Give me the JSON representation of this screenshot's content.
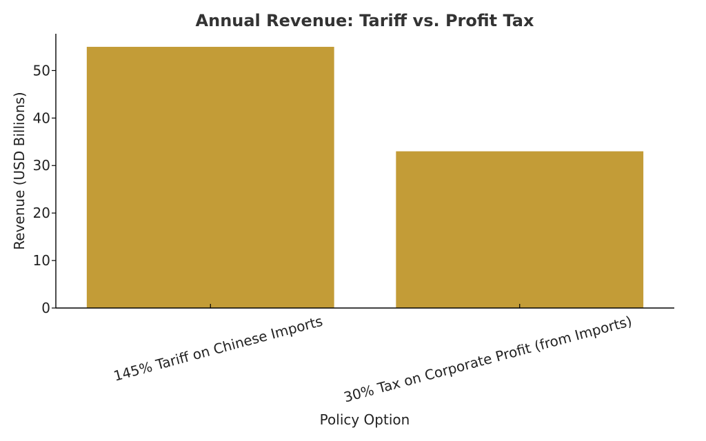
{
  "chart_data": {
    "type": "bar",
    "title": "Annual Revenue: Tariff vs. Profit Tax",
    "xlabel": "Policy Option",
    "ylabel": "Revenue (USD Billions)",
    "categories": [
      "145% Tariff on Chinese Imports",
      "30% Tax on Corporate Profit (from Imports)"
    ],
    "values": [
      55,
      33
    ],
    "ylim": [
      0,
      57.75
    ],
    "yticks": [
      0,
      10,
      20,
      30,
      40,
      50
    ],
    "bar_color": "#c39c37",
    "grid": false,
    "legend": "none"
  }
}
